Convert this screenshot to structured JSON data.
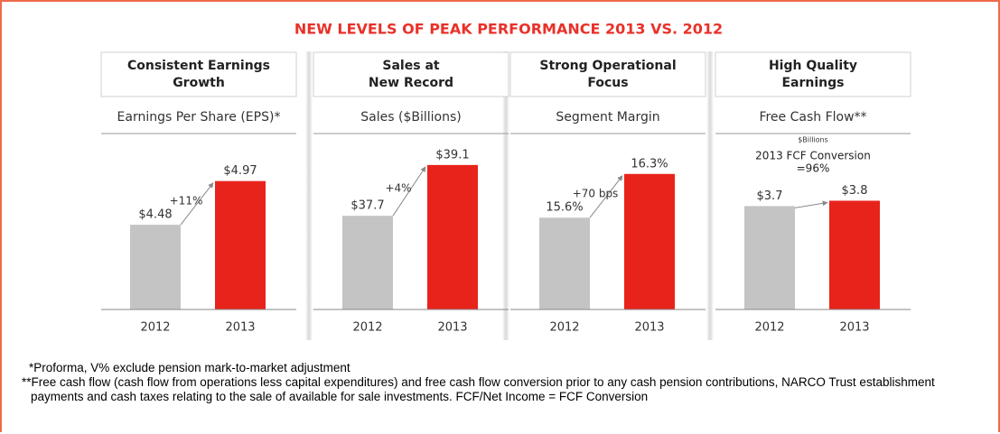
{
  "title": "NEW LEVELS OF PEAK PERFORMANCE 2013 VS. 2012",
  "chart_data": [
    {
      "type": "bar",
      "header": [
        "Consistent Earnings",
        "Growth"
      ],
      "title": "Earnings Per Share (EPS)*",
      "categories": [
        "2012",
        "2013"
      ],
      "values": [
        4.48,
        4.97
      ],
      "value_labels": [
        "$4.48",
        "$4.97"
      ],
      "colors": [
        "#c4c4c4",
        "#e8231c"
      ],
      "change": "+11%",
      "ylim": [
        3.53,
        5.26
      ]
    },
    {
      "type": "bar",
      "header": [
        "Sales at",
        "New Record"
      ],
      "title": "Sales ($Billions)",
      "categories": [
        "2012",
        "2013"
      ],
      "values": [
        37.7,
        39.1
      ],
      "value_labels": [
        "$37.7",
        "$39.1"
      ],
      "colors": [
        "#c4c4c4",
        "#e8231c"
      ],
      "change": "+4%",
      "ylim": [
        35.12,
        39.37
      ]
    },
    {
      "type": "bar",
      "header": [
        "Strong Operational",
        "Focus"
      ],
      "title": "Segment Margin",
      "categories": [
        "2012",
        "2013"
      ],
      "values": [
        15.6,
        16.3
      ],
      "value_labels": [
        "15.6%",
        "16.3%"
      ],
      "colors": [
        "#c4c4c4",
        "#e8231c"
      ],
      "change": "+70 bps",
      "ylim": [
        14.13,
        16.6
      ]
    },
    {
      "type": "bar",
      "header": [
        "High Quality",
        "Earnings"
      ],
      "title": "Free Cash Flow**",
      "unit": "$Billions",
      "note": [
        "2013 FCF Conversion",
        "=96%"
      ],
      "categories": [
        "2012",
        "2013"
      ],
      "values": [
        3.7,
        3.8
      ],
      "value_labels": [
        "$3.7",
        "$3.8"
      ],
      "colors": [
        "#c4c4c4",
        "#e8231c"
      ],
      "ylim": [
        1.77,
        4.65
      ]
    }
  ],
  "footnotes": [
    "*Proforma, V% exclude pension mark-to-market adjustment",
    "**Free cash flow (cash flow from operations less capital expenditures) and free cash flow conversion prior to any cash pension contributions, NARCO Trust establishment payments and cash taxes relating to the sale of available for sale investments. FCF/Net Income = FCF Conversion"
  ]
}
